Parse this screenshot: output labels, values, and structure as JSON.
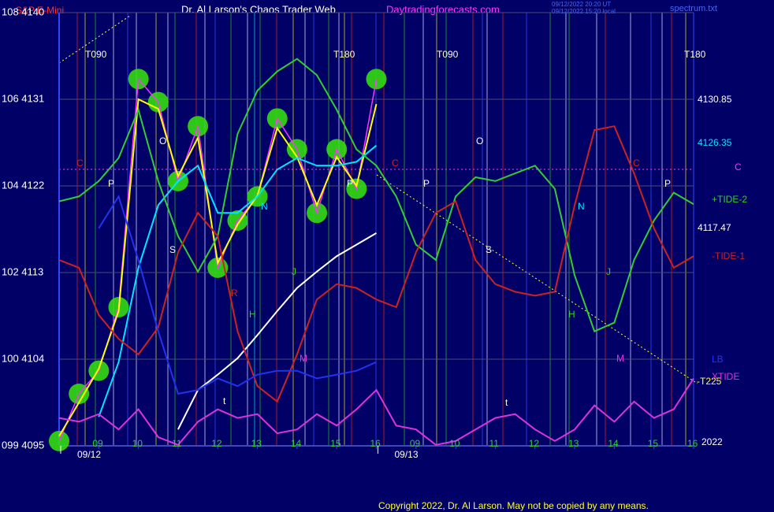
{
  "header": {
    "instrument": "S&P E-Mini",
    "site_title": "Dr. Al Larson's Chaos Trader Web",
    "site_url": "Daytradingforecasts.com",
    "timestamp_1": "09/12/2022 20:20 UT",
    "timestamp_2": "09/12/2022 15:20 local",
    "file": "spectrum.txt"
  },
  "cycle_labels": [
    "T090",
    "T180",
    "T090",
    "T180"
  ],
  "chart_data": {
    "type": "line",
    "x": [
      0,
      0.5,
      1,
      1.5,
      2,
      2.5,
      3,
      3.5,
      4,
      4.5,
      5,
      5.5,
      6,
      6.5,
      7,
      7.5,
      8,
      8.5,
      9,
      9.5,
      10,
      10.5,
      11,
      11.5,
      12,
      12.5,
      13,
      13.5,
      14,
      14.5,
      15,
      15.5,
      16
    ],
    "xlim": [
      0,
      16
    ],
    "xticks": [
      {
        "value": 1,
        "label": "09"
      },
      {
        "value": 2,
        "label": "10"
      },
      {
        "value": 3,
        "label": "11"
      },
      {
        "value": 4,
        "label": "12"
      },
      {
        "value": 5,
        "label": "13"
      },
      {
        "value": 6,
        "label": "14"
      },
      {
        "value": 7,
        "label": "15"
      },
      {
        "value": 8,
        "label": "16"
      },
      {
        "value": 9,
        "label": "09"
      },
      {
        "value": 10,
        "label": "10"
      },
      {
        "value": 11,
        "label": "11"
      },
      {
        "value": 12,
        "label": "12"
      },
      {
        "value": 13,
        "label": "13"
      },
      {
        "value": 14,
        "label": "14"
      },
      {
        "value": 15,
        "label": "15"
      },
      {
        "value": 16,
        "label": "16"
      }
    ],
    "date_ticks": [
      {
        "value": 0,
        "label": "09/12"
      },
      {
        "value": 8,
        "label": "09/13"
      }
    ],
    "ylim": [
      4095,
      4140
    ],
    "yticks": [
      {
        "value": 4140,
        "label": "108 4140"
      },
      {
        "value": 4131,
        "label": "106 4131"
      },
      {
        "value": 4122,
        "label": "104 4122"
      },
      {
        "value": 4113,
        "label": "102 4113"
      },
      {
        "value": 4104,
        "label": "100 4104"
      },
      {
        "value": 4095,
        "label": "099 4095"
      }
    ],
    "grid": true,
    "blob_color": "#33dd11",
    "series": [
      {
        "color": "#ff33ff",
        "blobs": true,
        "values": [
          4095.5,
          4100.4,
          4102.8,
          4109.4,
          4133.1,
          4130.7,
          4122.5,
          4128.2,
          4113.5,
          4118.4,
          4120.9,
          4129.0,
          4125.8,
          4119.2,
          4125.8,
          4121.7,
          4133.1,
          null,
          null,
          null,
          null,
          null,
          null,
          null,
          null,
          null,
          null,
          null,
          null,
          null,
          null,
          null,
          null
        ]
      },
      {
        "color": "#ffff00",
        "values": [
          4096,
          4099.5,
          4103,
          4109,
          4131,
          4130,
          4123,
          4127,
          4114,
          4118,
          4121,
          4128,
          4125,
          4120,
          4125,
          4122,
          4130.5,
          null,
          null,
          null,
          null,
          null,
          null,
          null,
          null,
          null,
          null,
          null,
          null,
          null,
          null,
          null,
          null
        ]
      },
      {
        "color": "#00e5ff",
        "values": [
          null,
          null,
          4098,
          4103.7,
          4113.5,
          4120,
          4122.5,
          4124.1,
          4119.2,
          4119.2,
          4120.9,
          4123.7,
          4124.9,
          4124.1,
          4124.1,
          4124.5,
          4126.2,
          null,
          null,
          null,
          null,
          null,
          null,
          null,
          null,
          null,
          null,
          null,
          null,
          null,
          null,
          null,
          null
        ]
      },
      {
        "color": "#ffffff",
        "values": [
          null,
          null,
          null,
          null,
          null,
          null,
          4096.7,
          4100.8,
          4102.4,
          4104.1,
          4106.5,
          4109,
          4111.4,
          4113.1,
          4114.7,
          4115.9,
          4117.1,
          null,
          null,
          null,
          null,
          null,
          null,
          null,
          null,
          null,
          null,
          null,
          null,
          null,
          null,
          null,
          null
        ]
      },
      {
        "name": "+TIDE-2",
        "color": "#33cc33",
        "values": [
          4120.4,
          4120.9,
          4122.5,
          4124.9,
          4129.9,
          4122.5,
          4116.8,
          4113.1,
          4116.8,
          4127.4,
          4131.9,
          4133.9,
          4135.2,
          4133.5,
          4129.9,
          4125.8,
          4124.1,
          4120.9,
          4115.9,
          4114.3,
          4120.9,
          4122.9,
          4122.5,
          4123.3,
          4124.1,
          4121.7,
          4112.7,
          4106.9,
          4107.8,
          4114.3,
          4118.4,
          4121.3,
          4120.1
        ]
      },
      {
        "name": "-TIDE-1",
        "color": "#cc2222",
        "values": [
          4114.3,
          4113.5,
          4108.6,
          4106.1,
          4104.5,
          4107.3,
          4115.1,
          4119.2,
          4116.8,
          4106.9,
          4101.2,
          4099.6,
          4104.5,
          4110.2,
          4111.8,
          4111.4,
          4110.2,
          4109.4,
          4115.1,
          4119.2,
          4120.4,
          4114.3,
          4111.8,
          4111,
          4110.6,
          4111,
          4120,
          4127.8,
          4128.2,
          4123.3,
          4117.6,
          4113.5,
          4114.7
        ]
      },
      {
        "name": "LB",
        "color": "#2233ee",
        "values": [
          null,
          null,
          4117.6,
          4120.9,
          4114.3,
          4106.9,
          4100.4,
          4100.8,
          4102,
          4101.2,
          4102.4,
          4102.8,
          4102.8,
          4102,
          4102.4,
          4102.8,
          4103.7,
          null,
          null,
          null,
          null,
          null,
          null,
          null,
          null,
          null,
          null,
          null,
          null,
          null,
          null,
          null,
          null
        ]
      },
      {
        "name": "XTIDE",
        "color": "#dd33dd",
        "values": [
          4097.9,
          4097.5,
          4098.3,
          4096.7,
          4098.8,
          4095.9,
          4095.1,
          4097.5,
          4098.8,
          4097.9,
          4098.3,
          4096.3,
          4096.7,
          4098.3,
          4097.1,
          4098.8,
          4100.8,
          4097.1,
          4096.7,
          4095.1,
          4095.5,
          4096.7,
          4097.9,
          4098.3,
          4096.7,
          4095.5,
          4096.7,
          4099.2,
          4097.5,
          4099.6,
          4097.9,
          4098.8,
          4102
        ]
      }
    ]
  },
  "right_labels": [
    "4130.85",
    "4126.35",
    "C",
    "4117.47",
    "-T225",
    "2022"
  ],
  "letters": [
    "C",
    "P",
    "O",
    "S",
    "N",
    "R",
    "H",
    "J",
    "M",
    "t",
    "P",
    "C",
    "P",
    "O",
    "S",
    "N",
    "H",
    "J",
    "M",
    "C",
    "P",
    "t"
  ],
  "footer": "Copyright 2022, Dr. Al Larson. May not be copied by any means."
}
